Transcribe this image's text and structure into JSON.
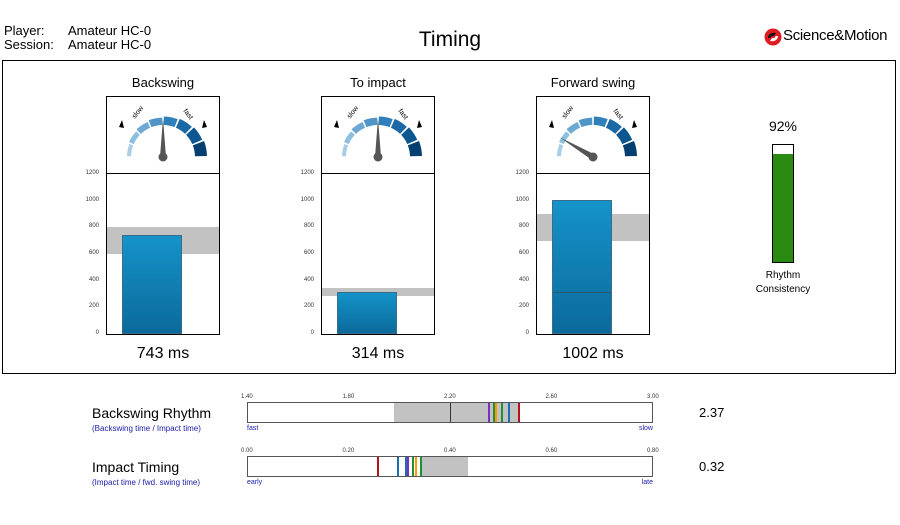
{
  "header": {
    "player_label": "Player:",
    "player_value": "Amateur HC-0",
    "session_label": "Session:",
    "session_value": "Amateur HC-0",
    "title": "Timing",
    "brand": "Science&Motion"
  },
  "gauge": {
    "slow_label": "slow",
    "fast_label": "fast"
  },
  "panels": [
    {
      "title": "Backswing",
      "value_text": "743 ms",
      "value": 743,
      "target_range": [
        600,
        800
      ],
      "needle_fraction": 0.5
    },
    {
      "title": "To impact",
      "value_text": "314 ms",
      "value": 314,
      "target_range": [
        285,
        345
      ],
      "needle_fraction": 0.5
    },
    {
      "title": "Forward swing",
      "value_text": "1002 ms",
      "value": 1002,
      "divider": 310,
      "target_range": [
        700,
        900
      ],
      "needle_fraction": 0.17
    }
  ],
  "axis": {
    "ticks": [
      "1200",
      "1000",
      "800",
      "600",
      "400",
      "200",
      "0"
    ],
    "max": 1200
  },
  "rhythm": {
    "percent_text": "92%",
    "percent": 92,
    "label_line1": "Rhythm",
    "label_line2": "Consistency"
  },
  "bars": [
    {
      "label": "Backswing Rhythm",
      "sublabel": "(Backswing time / Impact time)",
      "scale": [
        "1.40",
        "1.80",
        "2.20",
        "2.60",
        "3.00"
      ],
      "min": 1.4,
      "max": 3.0,
      "band": [
        1.98,
        2.47
      ],
      "center": 2.2,
      "marks": [
        {
          "value": 2.35,
          "color": "#7b2fbe"
        },
        {
          "value": 2.37,
          "color": "#1f8f3a"
        },
        {
          "value": 2.38,
          "color": "#ff9900"
        },
        {
          "value": 2.4,
          "color": "#1f8f3a"
        },
        {
          "value": 2.43,
          "color": "#1a6fb3"
        },
        {
          "value": 2.47,
          "color": "#b5121b"
        }
      ],
      "left_label": "fast",
      "right_label": "slow",
      "value_text": "2.37"
    },
    {
      "label": "Impact Timing",
      "sublabel": "(Impact time / fwd. swing time)",
      "scale": [
        "0.00",
        "0.20",
        "0.40",
        "0.60",
        "0.80"
      ],
      "min": 0.0,
      "max": 0.8,
      "band": [
        0.345,
        0.435
      ],
      "marks": [
        {
          "value": 0.255,
          "color": "#b5121b"
        },
        {
          "value": 0.295,
          "color": "#1a6fb3"
        },
        {
          "value": 0.31,
          "color": "#1a6fb3"
        },
        {
          "value": 0.315,
          "color": "#7b2fbe"
        },
        {
          "value": 0.325,
          "color": "#1f8f3a"
        },
        {
          "value": 0.33,
          "color": "#ff9900"
        },
        {
          "value": 0.34,
          "color": "#1f8f3a"
        }
      ],
      "left_label": "early",
      "right_label": "late",
      "value_text": "0.32"
    }
  ],
  "colors": {
    "bar_top": "#1593c9",
    "bar_bottom": "#0b6a9b",
    "band": "#c2c2c2",
    "rhythm_fill": "#2b8a12"
  }
}
